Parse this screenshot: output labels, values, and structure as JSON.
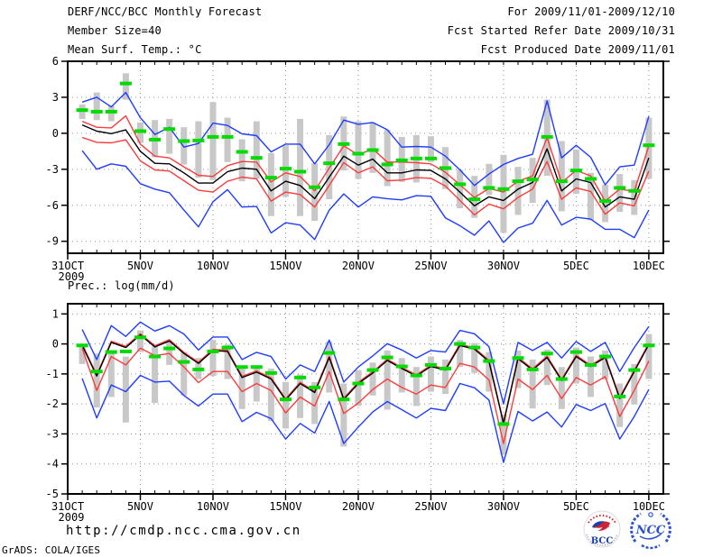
{
  "title_block": {
    "line1": "DERF/NCC/BCC Monthly Forecast",
    "line2": "Member Size=40",
    "temp_title": "Mean Surf. Temp.: °C"
  },
  "forecast_block": {
    "line1": "For 2009/11/01-2009/12/10",
    "line2": "Fcst Started Refer Date 2009/10/31",
    "line3": "Fcst Produced Date 2009/11/01"
  },
  "precip_title": "Prec.: log(mm/d)",
  "footer": {
    "url": "http://cmdp.ncc.cma.gov.cn",
    "credit": "GrADS: COLA/IGES",
    "logos": {
      "bcc_label": "BCC",
      "ncc_label": "NCC"
    }
  },
  "colors": {
    "mean": "#000000",
    "band": "#fa3c3c",
    "envelope": "#1e3cff",
    "obs": "#00dc00",
    "spread_bar": "#c8c8c8",
    "grid": "#909090",
    "frame": "#000000"
  },
  "chart_data": [
    {
      "type": "line",
      "title": "Mean Surf. Temp.: °C",
      "ylabel_ticks": [
        6,
        3,
        0,
        -3,
        -6,
        -9
      ],
      "grid_y": [
        3,
        0,
        -3,
        -6,
        -9
      ],
      "y_domain": [
        -10,
        6
      ],
      "x_domain_days": [
        0,
        41
      ],
      "days_start": 1,
      "x_ticks": [
        {
          "day": 0,
          "label": "31OCT",
          "sublabel": "2009"
        },
        {
          "day": 5,
          "label": "5NOV"
        },
        {
          "day": 10,
          "label": "10NOV"
        },
        {
          "day": 15,
          "label": "15NOV"
        },
        {
          "day": 20,
          "label": "20NOV"
        },
        {
          "day": 25,
          "label": "25NOV"
        },
        {
          "day": 30,
          "label": "30NOV"
        },
        {
          "day": 35,
          "label": "5DEC"
        },
        {
          "day": 40,
          "label": "10DEC"
        }
      ],
      "series": {
        "envelope_max": [
          2.6,
          3.0,
          2.2,
          3.4,
          1.3,
          -0.1,
          0.5,
          -1.15,
          -0.85,
          0.85,
          0.65,
          -0.05,
          -0.2,
          -1.55,
          -0.9,
          -0.9,
          -2.55,
          -0.95,
          1.1,
          0.75,
          0.9,
          0.3,
          -1.15,
          -1.1,
          -1.15,
          -1.9,
          -3.05,
          -4.35,
          -3.4,
          -2.6,
          -2.1,
          -1.75,
          2.7,
          -2.05,
          -1.0,
          -2.0,
          -4.3,
          -2.8,
          -2.65,
          1.4
        ],
        "band_upper": [
          1.0,
          0.5,
          0.45,
          1.45,
          -0.9,
          -1.9,
          -2.05,
          -2.8,
          -3.5,
          -3.6,
          -2.7,
          -2.35,
          -2.4,
          -4.05,
          -3.3,
          -3.6,
          -4.8,
          -2.9,
          -1.05,
          -1.8,
          -1.3,
          -2.4,
          -2.4,
          -2.45,
          -2.55,
          -3.25,
          -4.3,
          -5.35,
          -4.6,
          -4.9,
          -4.0,
          -3.55,
          -0.35,
          -4.1,
          -3.1,
          -3.55,
          -5.65,
          -4.65,
          -4.85,
          -1.05
        ],
        "mean": [
          0.7,
          0.18,
          -0.03,
          0.28,
          -1.5,
          -2.5,
          -2.55,
          -3.3,
          -4.15,
          -4.15,
          -3.2,
          -2.9,
          -3.0,
          -4.8,
          -4.0,
          -4.35,
          -5.45,
          -3.65,
          -1.9,
          -2.65,
          -2.15,
          -3.3,
          -3.3,
          -3.05,
          -3.1,
          -3.8,
          -4.9,
          -6.05,
          -5.3,
          -5.6,
          -4.65,
          -4.1,
          -1.3,
          -4.8,
          -3.8,
          -4.1,
          -6.15,
          -5.3,
          -5.5,
          -2.05
        ],
        "band_lower": [
          -0.35,
          -0.75,
          -0.8,
          -0.55,
          -2.3,
          -3.05,
          -3.15,
          -3.95,
          -4.75,
          -4.9,
          -4.0,
          -3.65,
          -3.8,
          -5.65,
          -4.9,
          -5.1,
          -6.15,
          -4.35,
          -2.45,
          -3.3,
          -2.8,
          -3.95,
          -3.9,
          -3.7,
          -3.75,
          -4.4,
          -5.6,
          -6.8,
          -5.9,
          -6.3,
          -5.35,
          -4.65,
          -2.35,
          -5.5,
          -4.55,
          -4.85,
          -6.75,
          -5.8,
          -6.05,
          -3.15
        ],
        "envelope_min": [
          -1.45,
          -3.0,
          -2.55,
          -2.75,
          -4.2,
          -4.65,
          -4.95,
          -6.4,
          -7.8,
          -5.7,
          -4.7,
          -6.15,
          -6.1,
          -8.3,
          -7.45,
          -7.65,
          -8.85,
          -6.4,
          -5.05,
          -6.15,
          -5.3,
          -5.45,
          -5.55,
          -5.2,
          -5.25,
          -7.05,
          -7.7,
          -8.5,
          -7.3,
          -9.1,
          -7.9,
          -7.5,
          -5.6,
          -7.65,
          -7.0,
          -7.15,
          -8.0,
          -8.0,
          -8.7,
          -6.4
        ]
      },
      "obs_dashes": [
        1.93,
        1.8,
        1.8,
        4.15,
        0.18,
        -0.53,
        0.35,
        -0.65,
        -0.6,
        -0.3,
        -0.3,
        -1.55,
        -2.05,
        -3.7,
        -2.95,
        -3.2,
        -4.5,
        -2.5,
        -0.9,
        -1.7,
        -1.4,
        -2.6,
        -2.25,
        -2.1,
        -2.1,
        -2.9,
        -4.25,
        -5.5,
        -4.55,
        -4.65,
        -4.0,
        -3.85,
        -0.3,
        -4.0,
        -3.1,
        -3.8,
        -5.65,
        -4.55,
        -4.8,
        -1.0
      ],
      "spread_bars": {
        "top": [
          2.4,
          3.4,
          2.3,
          5.0,
          0.9,
          1.1,
          1.2,
          0.5,
          1.0,
          2.6,
          1.3,
          -0.5,
          1.0,
          -1.65,
          -1.0,
          1.2,
          -2.5,
          -0.15,
          1.4,
          1.0,
          0.85,
          0.3,
          -0.3,
          -0.15,
          -0.25,
          -1.15,
          -3.05,
          -3.55,
          -2.55,
          -1.8,
          -2.8,
          -2.05,
          2.8,
          -0.65,
          -1.35,
          -3.3,
          -4.3,
          -3.4,
          -3.9,
          1.3
        ],
        "bottom": [
          1.2,
          1.1,
          1.0,
          2.8,
          -0.8,
          -2.0,
          -1.7,
          -2.6,
          -3.7,
          -3.9,
          -2.4,
          -4.0,
          -3.8,
          -6.9,
          -5.3,
          -6.9,
          -7.3,
          -5.5,
          -3.1,
          -3.8,
          -3.3,
          -4.4,
          -4.05,
          -4.1,
          -2.4,
          -4.65,
          -6.25,
          -7.05,
          -5.15,
          -8.3,
          -6.8,
          -5.8,
          -3.55,
          -6.5,
          -5.05,
          -7.25,
          -7.4,
          -6.55,
          -6.8,
          -3.8
        ]
      }
    },
    {
      "type": "line",
      "title": "Prec.: log(mm/d)",
      "ylabel_ticks": [
        1,
        0,
        -1,
        -2,
        -3,
        -4,
        -5
      ],
      "grid_y": [
        1,
        0,
        -1,
        -2,
        -3,
        -4
      ],
      "y_domain": [
        -5,
        1.34
      ],
      "x_domain_days": [
        0,
        41
      ],
      "days_start": 1,
      "x_ticks": [
        {
          "day": 0,
          "label": "31OCT",
          "sublabel": "2009"
        },
        {
          "day": 5,
          "label": "5NOV"
        },
        {
          "day": 10,
          "label": "10NOV"
        },
        {
          "day": 15,
          "label": "15NOV"
        },
        {
          "day": 20,
          "label": "20NOV"
        },
        {
          "day": 25,
          "label": "25NOV"
        },
        {
          "day": 30,
          "label": "30NOV"
        },
        {
          "day": 35,
          "label": "5DEC"
        },
        {
          "day": 40,
          "label": "10DEC"
        }
      ],
      "series": {
        "envelope_max": [
          0.48,
          -0.52,
          0.61,
          0.25,
          0.73,
          0.43,
          0.61,
          0.33,
          -0.2,
          0.23,
          0.23,
          -0.52,
          -0.28,
          -0.42,
          -1.17,
          -0.7,
          -0.92,
          0.13,
          -1.27,
          -0.77,
          -0.4,
          0.01,
          -0.2,
          -0.47,
          -0.22,
          -0.27,
          0.45,
          0.34,
          -0.09,
          -2.0,
          0.05,
          -0.22,
          0.05,
          -0.47,
          0.08,
          -0.25,
          0.05,
          -0.92,
          -0.12,
          0.58
        ],
        "band_upper": [
          -0.01,
          -1.03,
          0.09,
          -0.08,
          0.34,
          -0.06,
          0.14,
          -0.28,
          -0.61,
          -0.18,
          -0.21,
          -1.08,
          -0.9,
          -1.13,
          -1.83,
          -1.28,
          -1.58,
          -0.41,
          -1.81,
          -1.28,
          -0.93,
          -0.51,
          -0.78,
          -1.03,
          -0.71,
          -0.83,
          -0.01,
          -0.13,
          -0.55,
          -2.61,
          -0.45,
          -0.83,
          -0.41,
          -1.18,
          -0.38,
          -0.71,
          -0.41,
          -1.78,
          -0.88,
          0.02
        ],
        "mean": [
          -0.05,
          -1.07,
          0.05,
          -0.12,
          0.3,
          -0.1,
          0.1,
          -0.32,
          -0.65,
          -0.22,
          -0.25,
          -1.12,
          -0.94,
          -1.17,
          -1.87,
          -1.32,
          -1.62,
          -0.45,
          -1.85,
          -1.32,
          -0.97,
          -0.55,
          -0.82,
          -1.07,
          -0.75,
          -0.87,
          -0.05,
          -0.17,
          -0.59,
          -2.65,
          -0.49,
          -0.87,
          -0.45,
          -1.22,
          -0.42,
          -0.75,
          -0.45,
          -1.82,
          -0.92,
          -0.02
        ],
        "band_lower": [
          -0.15,
          -1.55,
          -0.42,
          -0.7,
          -0.14,
          -0.39,
          -0.32,
          -0.77,
          -1.29,
          -0.92,
          -0.92,
          -1.59,
          -1.32,
          -1.55,
          -2.3,
          -1.77,
          -2.07,
          -0.92,
          -2.32,
          -1.97,
          -1.52,
          -1.17,
          -1.45,
          -1.67,
          -1.37,
          -1.45,
          -0.65,
          -0.77,
          -1.2,
          -3.32,
          -1.17,
          -1.52,
          -1.05,
          -1.82,
          -1.12,
          -1.37,
          -1.09,
          -2.42,
          -1.55,
          -0.57
        ],
        "envelope_min": [
          -1.15,
          -2.47,
          -1.37,
          -1.59,
          -1.05,
          -1.27,
          -1.24,
          -1.72,
          -2.07,
          -1.67,
          -1.67,
          -2.59,
          -2.28,
          -2.49,
          -3.17,
          -2.65,
          -2.97,
          -1.92,
          -3.32,
          -2.77,
          -2.27,
          -1.92,
          -2.19,
          -2.47,
          -2.15,
          -2.22,
          -1.32,
          -1.46,
          -1.87,
          -3.95,
          -2.25,
          -2.57,
          -2.27,
          -2.77,
          -2.02,
          -2.22,
          -1.99,
          -3.17,
          -2.42,
          -1.52
        ]
      },
      "obs_dashes": [
        -0.05,
        -0.92,
        -0.27,
        -0.25,
        0.22,
        -0.42,
        -0.15,
        -0.6,
        -0.85,
        -0.25,
        -0.12,
        -0.77,
        -0.77,
        -0.97,
        -1.85,
        -1.12,
        -1.45,
        -0.3,
        -1.85,
        -1.32,
        -0.87,
        -0.45,
        -0.75,
        -1.05,
        -0.7,
        -0.82,
        0.0,
        -0.12,
        -0.57,
        -2.67,
        -0.47,
        -0.85,
        -0.32,
        -1.17,
        -0.27,
        -0.7,
        -0.42,
        -1.75,
        -0.87,
        -0.05
      ],
      "spread_bars": {
        "top": [
          -0.05,
          -0.32,
          -0.32,
          -0.42,
          0.45,
          -0.09,
          0.08,
          -0.27,
          -0.47,
          0.13,
          -0.02,
          -0.77,
          -0.77,
          -0.82,
          -1.27,
          -1.02,
          -1.27,
          0.08,
          -1.32,
          -0.87,
          -0.62,
          -0.22,
          -0.47,
          -0.77,
          -0.42,
          -0.52,
          0.13,
          0.03,
          -0.27,
          -2.35,
          -0.22,
          -0.52,
          -0.19,
          -0.77,
          -0.12,
          -0.42,
          -0.22,
          -1.32,
          -0.67,
          0.33
        ],
        "bottom": [
          -0.67,
          -2.12,
          -1.77,
          -2.62,
          -0.27,
          -1.97,
          -0.7,
          -1.72,
          -1.17,
          -1.07,
          -1.17,
          -2.17,
          -1.92,
          -2.57,
          -2.82,
          -2.47,
          -2.67,
          -1.62,
          -3.42,
          -2.07,
          -1.72,
          -2.19,
          -1.62,
          -2.07,
          -1.59,
          -1.67,
          -0.77,
          -0.97,
          -1.59,
          -3.69,
          -1.47,
          -2.15,
          -1.37,
          -2.17,
          -1.32,
          -1.77,
          -1.19,
          -2.77,
          -2.02,
          -1.17
        ]
      }
    }
  ]
}
